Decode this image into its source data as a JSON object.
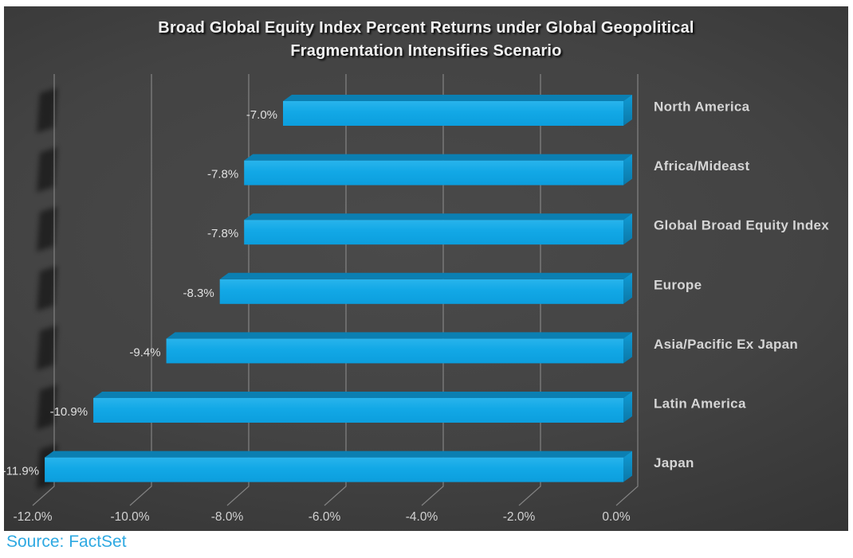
{
  "chart": {
    "title_line1": "Broad Global Equity Index Percent Returns under Global Geopolitical",
    "title_line2": "Fragmentation Intensifies Scenario"
  },
  "chart_data": {
    "type": "bar",
    "orientation": "horizontal",
    "style": "3d",
    "title": "Broad Global Equity Index Percent Returns under Global Geopolitical Fragmentation Intensifies Scenario",
    "categories": [
      "North America",
      "Africa/Mideast",
      "Global Broad Equity Index",
      "Europe",
      "Asia/Pacific Ex Japan",
      "Latin America",
      "Japan"
    ],
    "values": [
      -7.0,
      -7.8,
      -7.8,
      -8.3,
      -9.4,
      -10.9,
      -11.9
    ],
    "data_labels": [
      "-7.0%",
      "-7.8%",
      "-7.8%",
      "-8.3%",
      "-9.4%",
      "-10.9%",
      "-11.9%"
    ],
    "x_axis": {
      "range": [
        -12,
        0
      ],
      "ticks": [
        -12,
        -10,
        -8,
        -6,
        -4,
        -2,
        0
      ],
      "tick_labels": [
        "-12.0%",
        "-10.0%",
        "-8.0%",
        "-6.0%",
        "-4.0%",
        "-2.0%",
        "0.0%"
      ]
    },
    "ylabel": "",
    "xlabel": "",
    "legend": "none",
    "grid": true,
    "colors": {
      "bar_face": "#12a8e6",
      "bar_top": "#0b7fb2",
      "bar_side": "#0e91c6",
      "background_center": "#4a4a4a",
      "background_edge": "#1e1e1e",
      "gridline": "#a0a0a0",
      "label_text": "#d6d6d6",
      "title_text": "#f0f0f0"
    }
  },
  "footer": {
    "source": "Source: FactSet"
  }
}
